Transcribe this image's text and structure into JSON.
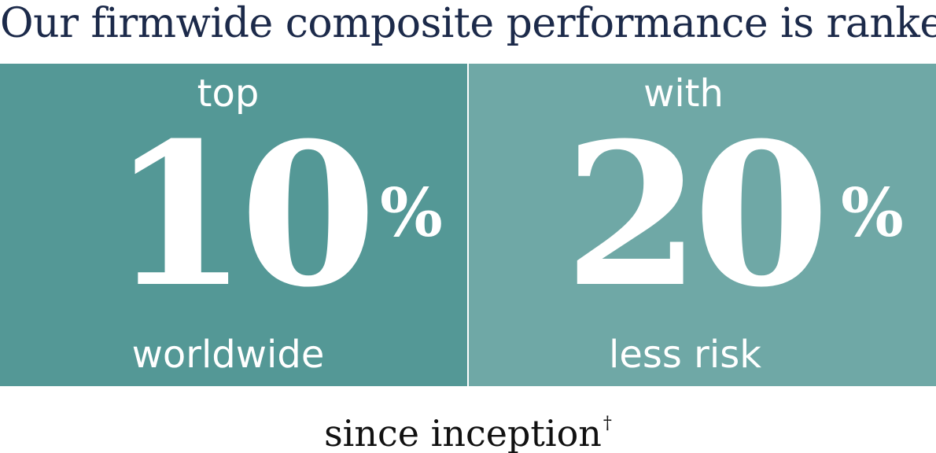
{
  "headline": "Our firmwide composite performance is ranked",
  "left_panel": {
    "top_word": "top",
    "number": "10",
    "percent_sign": "%",
    "bottom_word": "worldwide",
    "background_color": "#549896"
  },
  "right_panel": {
    "top_word": "with",
    "number": "20",
    "percent_sign": "%",
    "bottom_word": "less risk",
    "background_color": "#6fa8a6"
  },
  "footer": {
    "text": "since inception",
    "footnote_mark": "†"
  },
  "colors": {
    "headline_text": "#1c2a4a",
    "panel_text": "#ffffff",
    "footer_text": "#111111"
  }
}
